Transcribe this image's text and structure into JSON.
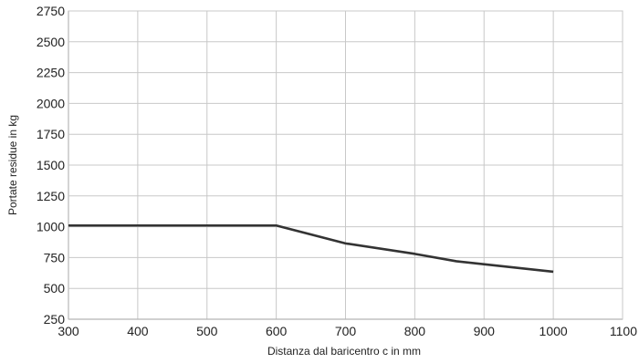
{
  "chart_data": {
    "type": "line",
    "xlabel": "Distanza dal baricentro c in mm",
    "ylabel": "Portate residue in kg",
    "xlim": [
      300,
      1100
    ],
    "ylim": [
      250,
      2750
    ],
    "x_ticks": [
      300,
      400,
      500,
      600,
      700,
      800,
      900,
      1000,
      1100
    ],
    "y_ticks": [
      250,
      500,
      750,
      1000,
      1250,
      1500,
      1750,
      2000,
      2250,
      2500,
      2750
    ],
    "grid": true,
    "series": [
      {
        "x": [
          300,
          600,
          700,
          800,
          860,
          1000
        ],
        "y": [
          1010,
          1010,
          865,
          780,
          720,
          635
        ]
      }
    ]
  },
  "colors": {
    "line": "#333333",
    "grid": "#c8c8c8",
    "axis": "#666666"
  }
}
